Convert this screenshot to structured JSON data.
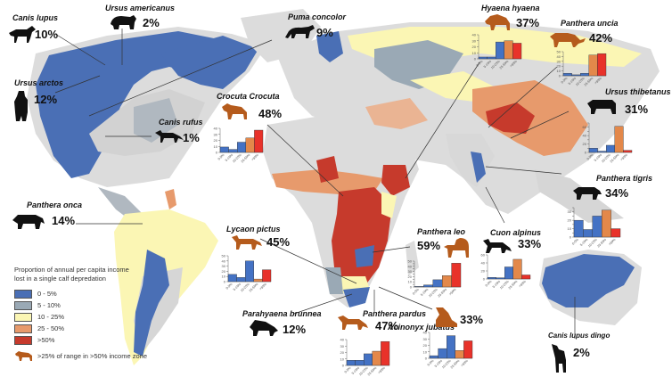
{
  "legend": {
    "title_line1": "Proportion of annual per capita income",
    "title_line2": "lost in a single calf depredation",
    "items": [
      {
        "label": "0 - 5%",
        "color": "#4a6fb5"
      },
      {
        "label": "5 - 10%",
        "color": "#9aa9b5"
      },
      {
        "label": "10 - 25%",
        "color": "#fbf6b4"
      },
      {
        "label": "25 - 50%",
        "color": "#e79a6c"
      },
      {
        "label": ">50%",
        "color": "#c63a2c"
      }
    ],
    "highlight_note": ">25% of range in >50% income zone",
    "highlight_color": "#b55b1c"
  },
  "bar_categories": [
    "0-5%",
    "5-10%",
    "10-25%",
    "25-50%",
    ">50%"
  ],
  "bar_colors": [
    "#4472c4",
    "#4472c4",
    "#4472c4",
    "#e3884a",
    "#e8322a"
  ],
  "species": [
    {
      "name": "Canis lupus",
      "pct": "10%"
    },
    {
      "name": "Ursus americanus",
      "pct": "2%"
    },
    {
      "name": "Ursus arctos",
      "pct": "12%"
    },
    {
      "name": "Puma concolor",
      "pct": "9%"
    },
    {
      "name": "Canis rufus",
      "pct": "1%"
    },
    {
      "name": "Crocuta Crocuta",
      "pct": "48%",
      "chart": {
        "yticks": [
          0,
          10,
          20,
          30,
          40
        ],
        "values": [
          9,
          5,
          17,
          24,
          37
        ]
      }
    },
    {
      "name": "Hyaena hyaena",
      "pct": "37%",
      "chart": {
        "yticks": [
          0,
          10,
          20,
          30,
          40
        ],
        "values": [
          3,
          3,
          28,
          30,
          26
        ]
      }
    },
    {
      "name": "Panthera uncia",
      "pct": "42%",
      "chart": {
        "yticks": [
          0,
          10,
          20,
          30,
          40,
          50
        ],
        "values": [
          5,
          2,
          5,
          43,
          46
        ]
      }
    },
    {
      "name": "Ursus thibetanus",
      "pct": "31%",
      "chart": {
        "yticks": [
          0,
          10,
          20,
          30,
          40,
          50,
          60,
          70
        ],
        "values": [
          10,
          3,
          17,
          62,
          5
        ]
      }
    },
    {
      "name": "Panthera tigris",
      "pct": "34%",
      "chart": {
        "yticks": [
          0,
          5,
          10,
          15,
          20,
          25,
          30,
          35
        ],
        "values": [
          20,
          9,
          25,
          32,
          10
        ]
      }
    },
    {
      "name": "Panthera onca",
      "pct": "14%"
    },
    {
      "name": "Lycaon pictus",
      "pct": "45%",
      "chart": {
        "yticks": [
          0,
          10,
          20,
          30,
          40,
          50
        ],
        "values": [
          14,
          8,
          40,
          5,
          23
        ]
      }
    },
    {
      "name": "Panthera leo",
      "pct": "59%",
      "chart": {
        "yticks": [
          0,
          5,
          10,
          15,
          20,
          25,
          30,
          35,
          40,
          45,
          50
        ],
        "values": [
          1,
          4,
          14,
          22,
          46
        ]
      }
    },
    {
      "name": "Cuon alpinus",
      "pct": "33%",
      "chart": {
        "yticks": [
          0,
          20,
          40,
          60
        ],
        "values": [
          4,
          3,
          30,
          49,
          10
        ]
      }
    },
    {
      "name": "Parahyaena brunnea",
      "pct": "12%"
    },
    {
      "name": "Panthera pardus",
      "pct": "47%",
      "chart": {
        "yticks": [
          0,
          10,
          20,
          30,
          40
        ],
        "values": [
          8,
          8,
          18,
          22,
          37
        ]
      }
    },
    {
      "name": "Acinonyx jubatus",
      "pct": "33%",
      "chart": {
        "yticks": [
          0,
          10,
          20,
          30,
          40
        ],
        "values": [
          4,
          15,
          35,
          12,
          27
        ]
      }
    },
    {
      "name": "Canis lupus dingo",
      "pct": "2%"
    }
  ]
}
